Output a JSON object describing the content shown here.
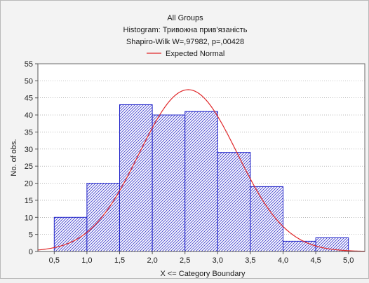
{
  "chart_data": {
    "type": "bar",
    "title": "All Groups",
    "subtitle": "Histogram: Тривожна прив'язаність",
    "stats_line": "Shapiro-Wilk W=,97982, p=,00428",
    "legend": [
      {
        "name": "Expected Normal",
        "color": "#e0282a",
        "type": "line"
      }
    ],
    "legend_placement": "top-center",
    "xlabel": "X <= Category Boundary",
    "ylabel": "No. of obs.",
    "bin_edges": [
      0.5,
      1.0,
      1.5,
      2.0,
      2.5,
      3.0,
      3.5,
      4.0,
      4.5,
      5.0
    ],
    "x_tick_labels": [
      "0,5",
      "1,0",
      "1,5",
      "2,0",
      "2,5",
      "3,0",
      "3,5",
      "4,0",
      "4,5",
      "5,0"
    ],
    "values": [
      10,
      20,
      43,
      40,
      41,
      29,
      19,
      3,
      4
    ],
    "y_ticks": [
      0,
      5,
      10,
      15,
      20,
      25,
      30,
      35,
      40,
      45,
      50,
      55
    ],
    "ylim": [
      0,
      55
    ],
    "xlim": [
      0.25,
      5.25
    ],
    "grid": true,
    "expected_normal": {
      "mean": 2.55,
      "sd": 0.75,
      "peak": 47.4
    },
    "colors": {
      "bar_fill": "#3e3ecf",
      "bar_stroke": "#1f22c8",
      "curve": "#e0282a",
      "grid": "#8f8f8f"
    }
  }
}
